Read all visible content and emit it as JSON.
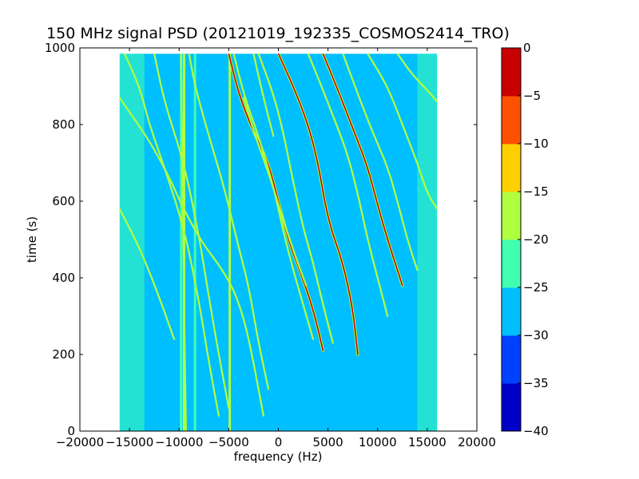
{
  "chart_data": {
    "type": "heatmap",
    "title": "150 MHz signal PSD (20121019_192335_COSMOS2414_TRO)",
    "xlabel": "frequency (Hz)",
    "ylabel": "time (s)",
    "xlim": [
      -20000,
      20000
    ],
    "ylim": [
      0,
      1000
    ],
    "data_extent": {
      "x": [
        -16000,
        16000
      ],
      "y": [
        0,
        985
      ]
    },
    "x_ticks": [
      -20000,
      -15000,
      -10000,
      -5000,
      0,
      5000,
      10000,
      15000,
      20000
    ],
    "x_tick_labels": [
      "−20000",
      "−15000",
      "−10000",
      "−5000",
      "0",
      "5000",
      "10000",
      "15000",
      "20000"
    ],
    "y_ticks": [
      0,
      200,
      400,
      600,
      800,
      1000
    ],
    "y_tick_labels": [
      "0",
      "200",
      "400",
      "600",
      "800",
      "1000"
    ],
    "background_level_db": -27.5,
    "vertical_lines": [
      {
        "freq": -9800,
        "level_db": -22
      },
      {
        "freq": -9500,
        "level_db": -17
      },
      {
        "freq": -8400,
        "level_db": -22
      },
      {
        "freq": -4900,
        "level_db": -17
      }
    ],
    "tracks": [
      {
        "points": [
          [
            -16000,
            870
          ],
          [
            -12000,
            720
          ],
          [
            -8500,
            520
          ],
          [
            -5000,
            400
          ],
          [
            -3500,
            300
          ],
          [
            -2500,
            180
          ],
          [
            -1500,
            40
          ]
        ],
        "level_db": -17
      },
      {
        "points": [
          [
            -16000,
            580
          ],
          [
            -14000,
            480
          ],
          [
            -12000,
            350
          ],
          [
            -10500,
            240
          ]
        ],
        "level_db": -20
      },
      {
        "points": [
          [
            -15500,
            985
          ],
          [
            -14000,
            900
          ],
          [
            -13000,
            800
          ],
          [
            -11500,
            690
          ],
          [
            -9500,
            530
          ],
          [
            -8000,
            340
          ],
          [
            -7000,
            180
          ],
          [
            -6000,
            40
          ]
        ],
        "level_db": -17
      },
      {
        "points": [
          [
            -12500,
            985
          ],
          [
            -11500,
            860
          ],
          [
            -9500,
            700
          ],
          [
            -8000,
            510
          ],
          [
            -7000,
            350
          ],
          [
            -6000,
            200
          ],
          [
            -5000,
            60
          ]
        ],
        "level_db": -20
      },
      {
        "points": [
          [
            -9000,
            985
          ],
          [
            -8400,
            900
          ],
          [
            -7000,
            770
          ],
          [
            -5500,
            640
          ],
          [
            -4000,
            480
          ],
          [
            -3000,
            380
          ],
          [
            -2000,
            230
          ],
          [
            -1000,
            110
          ]
        ],
        "level_db": -17
      },
      {
        "points": [
          [
            -5000,
            985
          ],
          [
            -4000,
            880
          ],
          [
            -2500,
            780
          ],
          [
            -1000,
            700
          ],
          [
            0,
            600
          ],
          [
            1000,
            500
          ],
          [
            2000,
            430
          ],
          [
            3500,
            320
          ],
          [
            4500,
            210
          ]
        ],
        "level_db": -2
      },
      {
        "points": [
          [
            -4500,
            985
          ],
          [
            -3500,
            880
          ],
          [
            -2000,
            770
          ],
          [
            -500,
            640
          ],
          [
            500,
            520
          ],
          [
            1500,
            420
          ],
          [
            2500,
            330
          ],
          [
            3500,
            240
          ]
        ],
        "level_db": -17
      },
      {
        "points": [
          [
            -3500,
            870
          ],
          [
            -2200,
            760
          ],
          [
            -800,
            660
          ],
          [
            500,
            550
          ],
          [
            1800,
            450
          ],
          [
            2800,
            380
          ]
        ],
        "level_db": -17
      },
      {
        "points": [
          [
            -2000,
            985
          ],
          [
            -500,
            880
          ],
          [
            500,
            780
          ],
          [
            1500,
            650
          ],
          [
            2500,
            530
          ],
          [
            3500,
            440
          ],
          [
            4500,
            330
          ],
          [
            5500,
            230
          ]
        ],
        "level_db": -17
      },
      {
        "points": [
          [
            0,
            985
          ],
          [
            1500,
            900
          ],
          [
            3000,
            800
          ],
          [
            4000,
            700
          ],
          [
            5000,
            550
          ],
          [
            6500,
            440
          ],
          [
            7500,
            320
          ],
          [
            8000,
            200
          ]
        ],
        "level_db": -2
      },
      {
        "points": [
          [
            3000,
            985
          ],
          [
            4500,
            890
          ],
          [
            6000,
            790
          ],
          [
            7000,
            720
          ],
          [
            8000,
            620
          ],
          [
            9000,
            500
          ],
          [
            10000,
            400
          ],
          [
            11000,
            300
          ]
        ],
        "level_db": -17
      },
      {
        "points": [
          [
            4500,
            985
          ],
          [
            6000,
            890
          ],
          [
            7500,
            790
          ],
          [
            9000,
            690
          ],
          [
            10000,
            590
          ],
          [
            11000,
            500
          ],
          [
            12500,
            380
          ]
        ],
        "level_db": -2
      },
      {
        "points": [
          [
            6500,
            985
          ],
          [
            8000,
            880
          ],
          [
            9500,
            780
          ],
          [
            11000,
            690
          ],
          [
            12000,
            600
          ],
          [
            13000,
            500
          ],
          [
            14000,
            420
          ]
        ],
        "level_db": -17
      },
      {
        "points": [
          [
            9000,
            985
          ],
          [
            11000,
            900
          ],
          [
            12500,
            800
          ],
          [
            14000,
            700
          ],
          [
            15000,
            620
          ],
          [
            16000,
            580
          ]
        ],
        "level_db": -17
      },
      {
        "points": [
          [
            12000,
            985
          ],
          [
            13500,
            930
          ],
          [
            15000,
            890
          ],
          [
            16000,
            860
          ]
        ],
        "level_db": -17
      },
      {
        "points": [
          [
            -9800,
            985
          ],
          [
            -9500,
            300
          ],
          [
            -9300,
            0
          ]
        ],
        "level_db": -20
      },
      {
        "points": [
          [
            -2500,
            985
          ],
          [
            -1500,
            870
          ],
          [
            -500,
            770
          ]
        ],
        "level_db": -20
      }
    ],
    "colorbar": {
      "min": -40,
      "max": 0,
      "levels": [
        -40,
        -35,
        -30,
        -25,
        -20,
        -15,
        -10,
        -5,
        0
      ],
      "tick_labels": [
        "−40",
        "−35",
        "−30",
        "−25",
        "−20",
        "−15",
        "−10",
        "−5",
        "0"
      ],
      "colors": [
        "#0000c8",
        "#0040ff",
        "#00bfff",
        "#40ffb0",
        "#b0ff40",
        "#ffd000",
        "#ff5000",
        "#c80000"
      ]
    }
  }
}
